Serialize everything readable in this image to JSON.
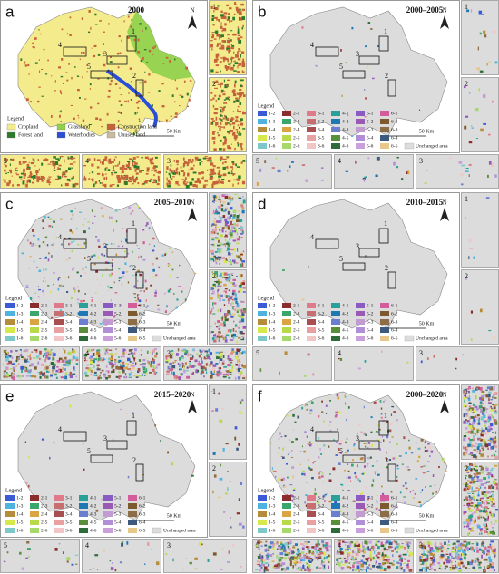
{
  "figure": {
    "panels": [
      {
        "letter": "a",
        "title": "2000"
      },
      {
        "letter": "b",
        "title": "2000–2005"
      },
      {
        "letter": "c",
        "title": "2005–2010"
      },
      {
        "letter": "d",
        "title": "2010–2015"
      },
      {
        "letter": "e",
        "title": "2015–2020"
      },
      {
        "letter": "f",
        "title": "2000–2020"
      }
    ],
    "land_legend": {
      "title": "Legend",
      "items": [
        {
          "label": "Cropland",
          "color": "#f4ec8c"
        },
        {
          "label": "Grassland",
          "color": "#8ed14b"
        },
        {
          "label": "Construction land",
          "color": "#c5623b"
        },
        {
          "label": "Forest land",
          "color": "#2d7a2d"
        },
        {
          "label": "Waterbodies",
          "color": "#2a4fd6"
        },
        {
          "label": "Unused land",
          "color": "#c9bba0"
        }
      ]
    },
    "change_legend": {
      "title": "Legend",
      "items": [
        {
          "label": "1-2",
          "color": "#3b5bd6"
        },
        {
          "label": "2-1",
          "color": "#8b2d2d"
        },
        {
          "label": "3-1",
          "color": "#e07a8a"
        },
        {
          "label": "4-1",
          "color": "#2aa198"
        },
        {
          "label": "5-1",
          "color": "#8a5bc2"
        },
        {
          "label": "6-1",
          "color": "#d35c9a"
        },
        {
          "label": "1-3",
          "color": "#4fb3e0"
        },
        {
          "label": "2-3",
          "color": "#3aa66b"
        },
        {
          "label": "3-2",
          "color": "#c86e6e"
        },
        {
          "label": "4-2",
          "color": "#1f77b4"
        },
        {
          "label": "5-2",
          "color": "#9b59b6"
        },
        {
          "label": "6-2",
          "color": "#7d5a2e"
        },
        {
          "label": "1-4",
          "color": "#b58c3a"
        },
        {
          "label": "2-4",
          "color": "#d9a441"
        },
        {
          "label": "3-4",
          "color": "#a94f4f"
        },
        {
          "label": "4-3",
          "color": "#6a7fd0"
        },
        {
          "label": "5-3",
          "color": "#c39bd3"
        },
        {
          "label": "6-3",
          "color": "#8c6d46"
        },
        {
          "label": "1-5",
          "color": "#d6e84a"
        },
        {
          "label": "2-5",
          "color": "#b8d94a"
        },
        {
          "label": "3-5",
          "color": "#e8a0a0"
        },
        {
          "label": "4-5",
          "color": "#5a8f3a"
        },
        {
          "label": "5-4",
          "color": "#b08fd8"
        },
        {
          "label": "6-4",
          "color": "#3c5a7d"
        },
        {
          "label": "1-6",
          "color": "#7dc8c8"
        },
        {
          "label": "2-6",
          "color": "#a6d96a"
        },
        {
          "label": "3-6",
          "color": "#f2c6c6"
        },
        {
          "label": "4-6",
          "color": "#2e6b3a"
        },
        {
          "label": "5-6",
          "color": "#c9a0dc"
        },
        {
          "label": "6-5",
          "color": "#e8c88a"
        }
      ],
      "unchanged": {
        "label": "Unchanged area",
        "color": "#dcdcdc"
      }
    },
    "north": "N",
    "scale": [
      "0",
      "50 Km"
    ],
    "box_labels": [
      "1",
      "2",
      "3",
      "4",
      "5"
    ]
  }
}
